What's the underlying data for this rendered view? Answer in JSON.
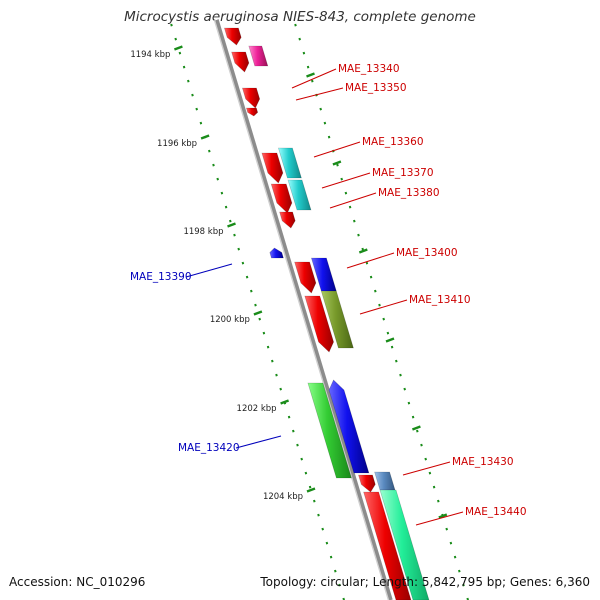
{
  "title": "Microcystis aeruginosa NIES-843, complete genome",
  "accession_text": "Accession: NC_010296",
  "topology_text": "Topology: circular; Length: 5,842,795 bp; Genes: 6,360",
  "colors": {
    "backbone": "#8c8c8c",
    "ticks": "#1a8c1a",
    "label_forward": "#cc0000",
    "label_reverse": "#0000bb"
  },
  "scale_ticks": [
    {
      "label": "1194 kbp"
    },
    {
      "label": "1196 kbp"
    },
    {
      "label": "1198 kbp"
    },
    {
      "label": "1200 kbp"
    },
    {
      "label": "1202 kbp"
    },
    {
      "label": "1204 kbp"
    }
  ],
  "gene_labels": [
    {
      "name": "MAE_13340",
      "strand": "forward"
    },
    {
      "name": "MAE_13350",
      "strand": "forward"
    },
    {
      "name": "MAE_13360",
      "strand": "forward"
    },
    {
      "name": "MAE_13370",
      "strand": "forward"
    },
    {
      "name": "MAE_13380",
      "strand": "forward"
    },
    {
      "name": "MAE_13390",
      "strand": "reverse"
    },
    {
      "name": "MAE_13400",
      "strand": "forward"
    },
    {
      "name": "MAE_13410",
      "strand": "forward"
    },
    {
      "name": "MAE_13420",
      "strand": "reverse"
    },
    {
      "name": "MAE_13430",
      "strand": "forward"
    },
    {
      "name": "MAE_13440",
      "strand": "forward"
    }
  ]
}
